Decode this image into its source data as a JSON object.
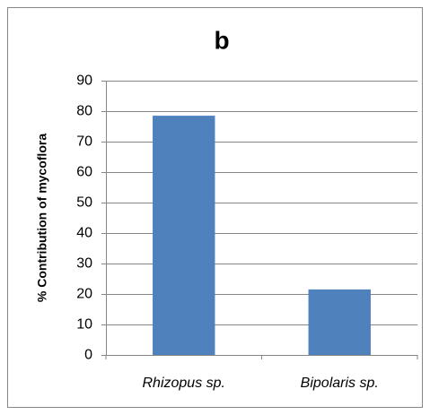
{
  "chart_data": {
    "type": "bar",
    "title": "b",
    "y_label": "% Contribution of mycoflora",
    "categories": [
      "Rhizopus sp.",
      "Bipolaris sp."
    ],
    "values": [
      78.5,
      21.5
    ],
    "color": "#4f81bd",
    "ylim": [
      0,
      90
    ],
    "yticks": [
      0,
      10,
      20,
      30,
      40,
      50,
      60,
      70,
      80,
      90
    ],
    "grid": true
  }
}
